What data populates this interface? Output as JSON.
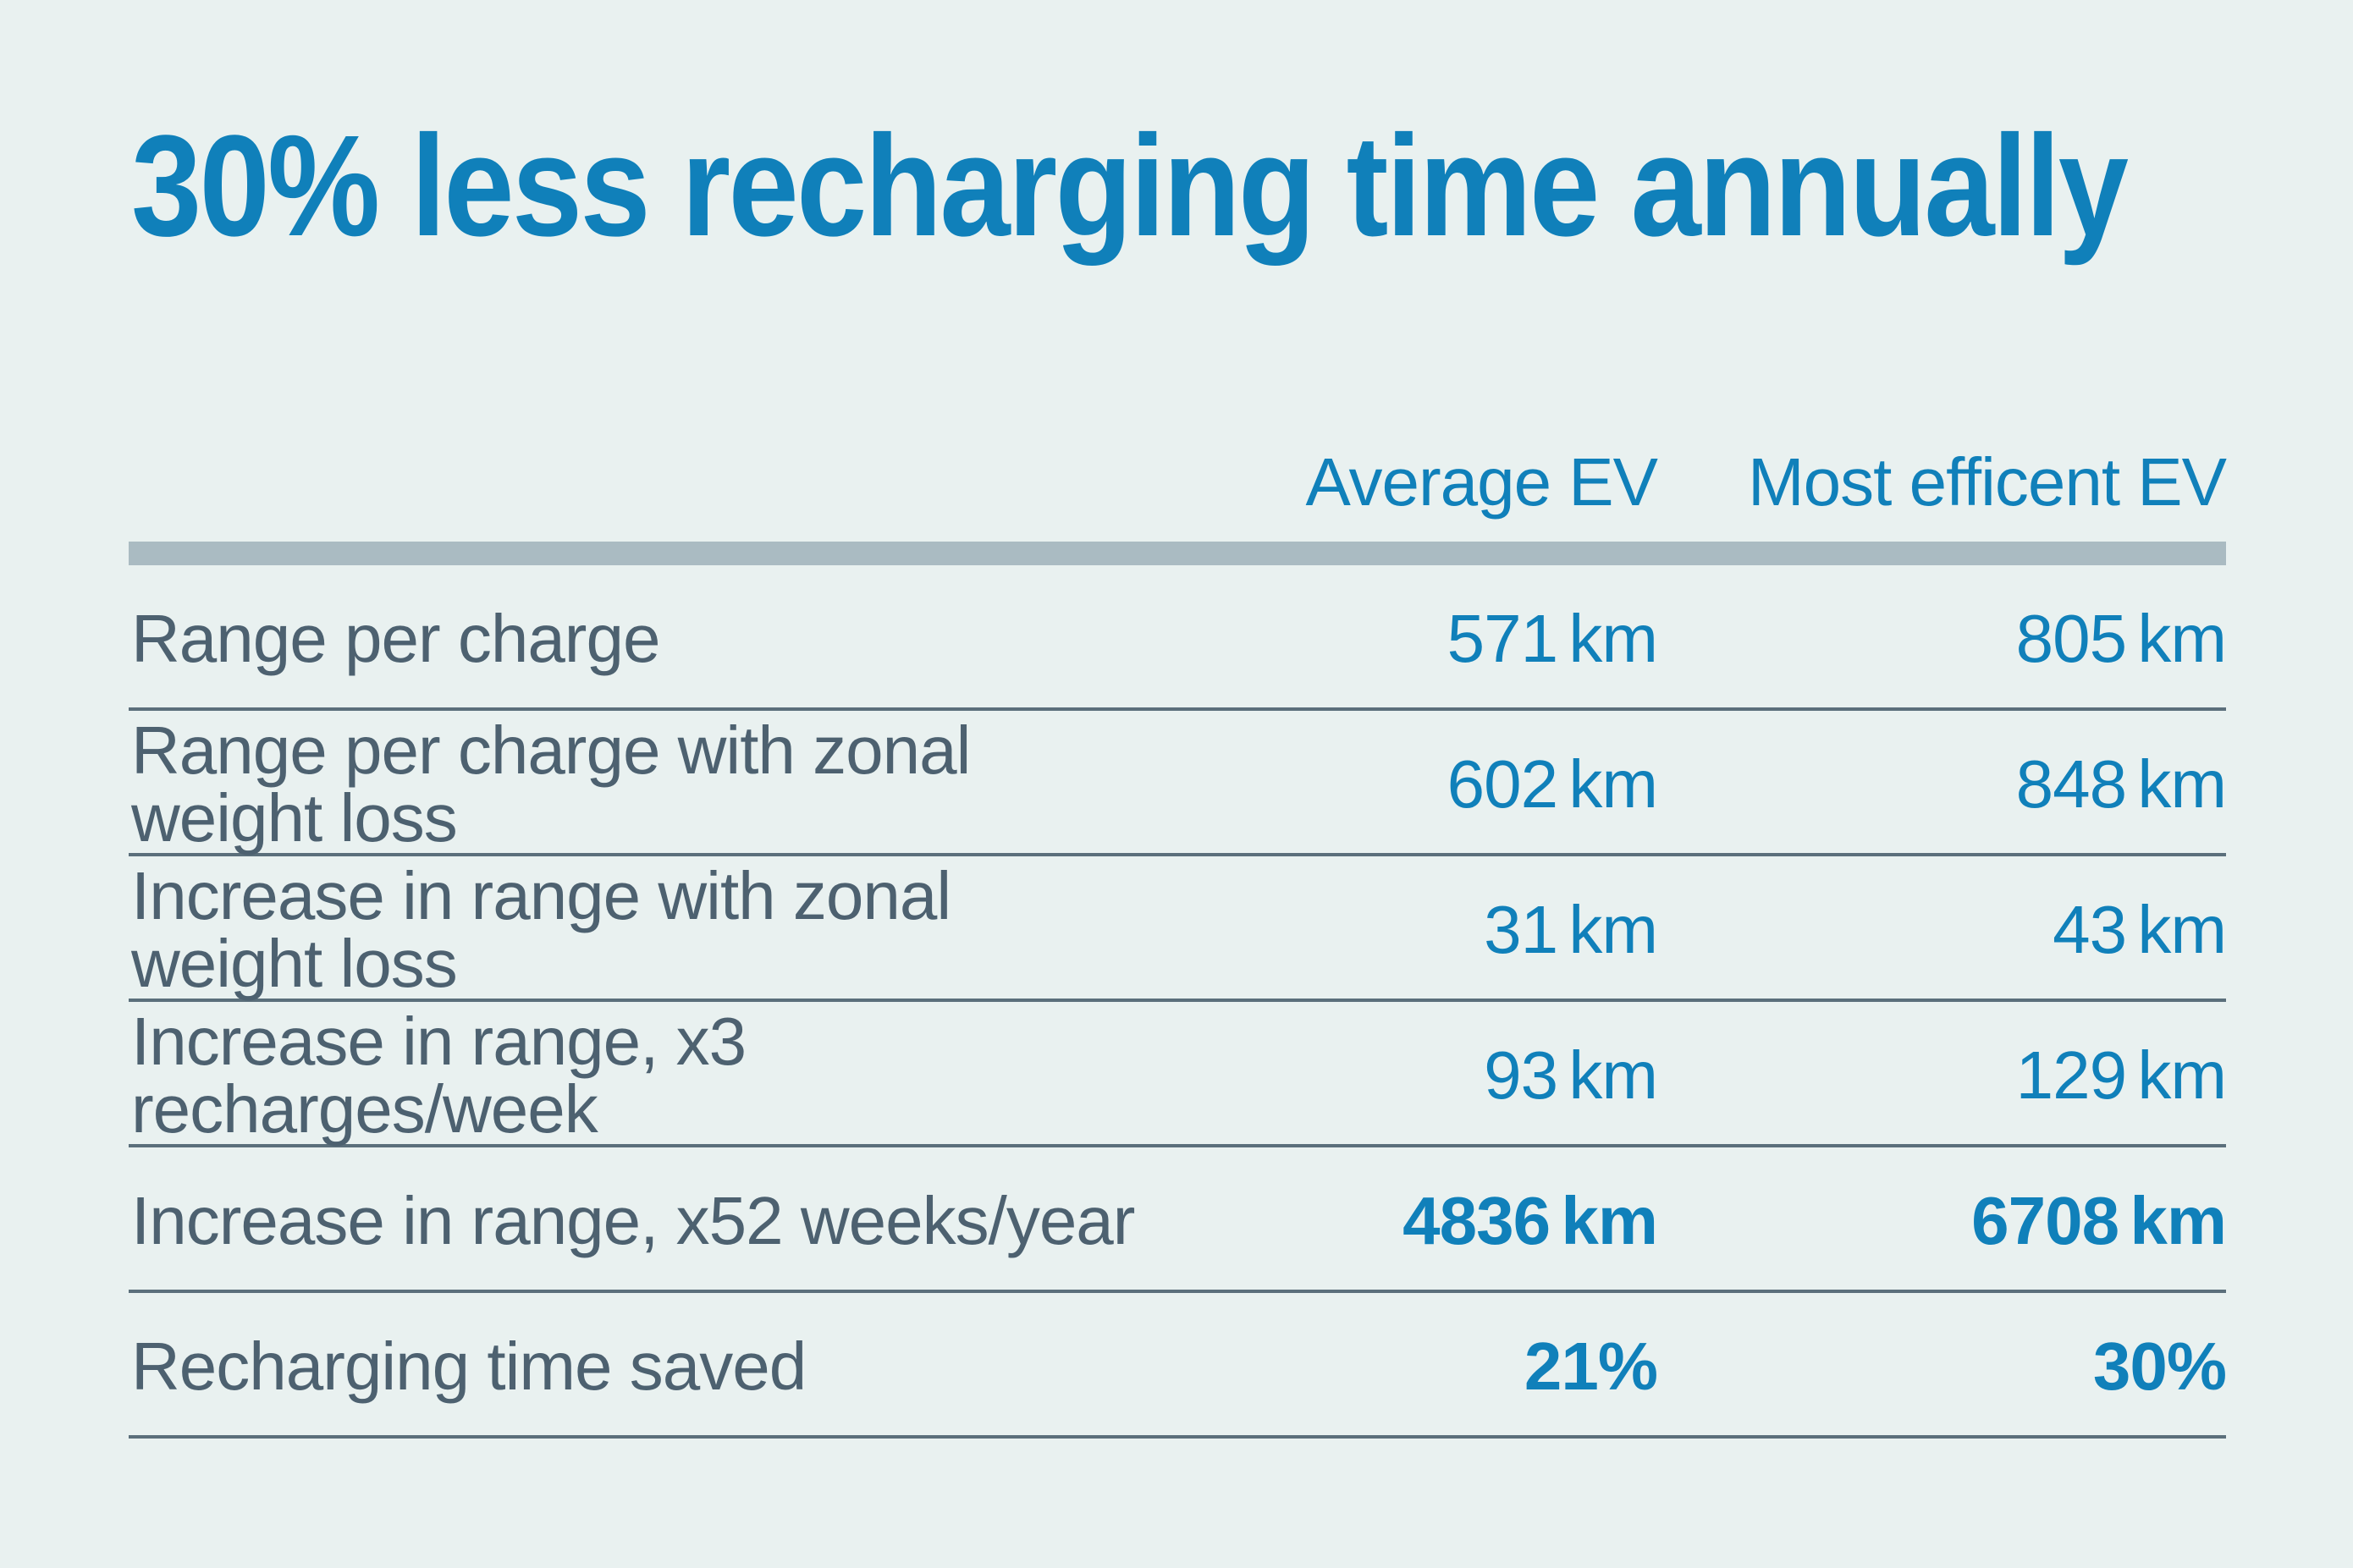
{
  "title": "30% less recharging time annually",
  "table": {
    "columns": [
      {
        "label": "Average EV"
      },
      {
        "label": "Most efficent EV"
      }
    ],
    "rows": [
      {
        "label": "Range per charge",
        "avg": "571 km",
        "best": "805 km",
        "bold": false
      },
      {
        "label": "Range per charge with zonal weight loss",
        "avg": "602 km",
        "best": "848 km",
        "bold": false
      },
      {
        "label": "Increase in range with zonal weight loss",
        "avg": "31 km",
        "best": "43 km",
        "bold": false
      },
      {
        "label": "Increase in range, x3 recharges/week",
        "avg": "93 km",
        "best": "129 km",
        "bold": false
      },
      {
        "label": "Increase in range, x52 weeks/year",
        "avg": "4836 km",
        "best": "6708 km",
        "bold": true
      },
      {
        "label": "Recharging time saved",
        "avg": "21%",
        "best": "30%",
        "bold": true
      }
    ]
  },
  "colors": {
    "background": "#e9f1f0",
    "accent": "#1080ba",
    "label_text": "#4d6170",
    "row_line": "#5b6f7b",
    "header_bar": "#aabbc2"
  }
}
